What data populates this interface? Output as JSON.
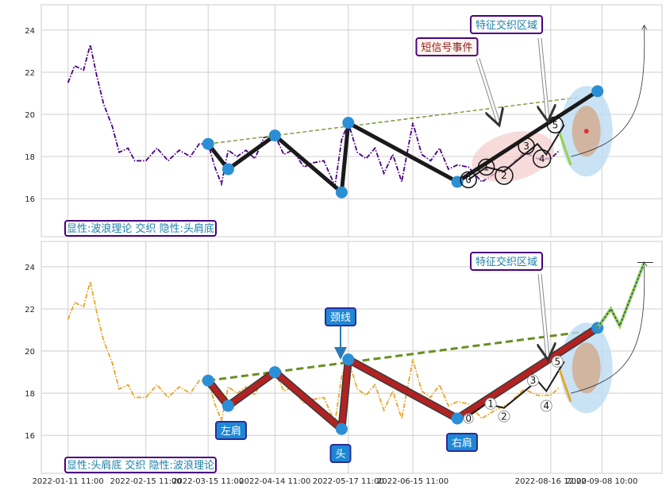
{
  "chart_data": [
    {
      "type": "line",
      "panel": "top",
      "ylim": [
        14.2,
        25.2
      ],
      "yticks": [
        16,
        18,
        20,
        22,
        24
      ],
      "grid": true,
      "series": [
        {
          "color": "#4b0082",
          "style": "dash-dot",
          "x": [
            "2022-01-11",
            "2022-01-14",
            "2022-01-18",
            "2022-01-21",
            "2022-01-24",
            "2022-01-27",
            "2022-01-31",
            "2022-02-03",
            "2022-02-07",
            "2022-02-10",
            "2022-02-15",
            "2022-02-20",
            "2022-02-25",
            "2022-03-02",
            "2022-03-07",
            "2022-03-11",
            "2022-03-15",
            "2022-03-18",
            "2022-03-21",
            "2022-03-24",
            "2022-03-28",
            "2022-04-01",
            "2022-04-05",
            "2022-04-09",
            "2022-04-14",
            "2022-04-18",
            "2022-04-22",
            "2022-04-27",
            "2022-05-01",
            "2022-05-06",
            "2022-05-11",
            "2022-05-14",
            "2022-05-17",
            "2022-05-21",
            "2022-05-25",
            "2022-05-29",
            "2022-06-02",
            "2022-06-06",
            "2022-06-10",
            "2022-06-15",
            "2022-06-19",
            "2022-06-23",
            "2022-06-27",
            "2022-07-01",
            "2022-07-05",
            "2022-07-10",
            "2022-07-16",
            "2022-07-22",
            "2022-07-28",
            "2022-08-04",
            "2022-08-10",
            "2022-08-16",
            "2022-08-20"
          ],
          "y": [
            21.5,
            22.3,
            22.1,
            23.3,
            21.8,
            20.5,
            19.4,
            18.2,
            18.4,
            17.8,
            17.8,
            18.4,
            17.8,
            18.3,
            18.0,
            18.6,
            18.6,
            17.5,
            16.7,
            18.3,
            18.0,
            18.3,
            17.9,
            18.9,
            19.0,
            18.1,
            18.3,
            17.5,
            17.7,
            17.8,
            16.6,
            18.8,
            19.6,
            18.2,
            17.9,
            18.4,
            17.2,
            18.1,
            16.8,
            19.6,
            18.1,
            17.8,
            18.4,
            17.4,
            17.6,
            17.5,
            16.8,
            17.2,
            17.5,
            18.2,
            17.9,
            17.9,
            18.3
          ]
        },
        {
          "color": "#1a1a1a",
          "name": "",
          "x": [
            "2022-03-15",
            "2022-03-24",
            "2022-04-14",
            "2022-05-14",
            "2022-05-17",
            "2022-07-05",
            "2022-09-06"
          ],
          "y": [
            18.6,
            17.4,
            19.0,
            16.3,
            19.6,
            16.8,
            21.1
          ]
        }
      ],
      "neckline": {
        "x": [
          "2022-03-15",
          "2022-08-28"
        ],
        "y": [
          18.6,
          20.8
        ],
        "color": "#6b8e23"
      },
      "wave_labels": [
        "0",
        "1",
        "2",
        "3",
        "4",
        "5"
      ],
      "annotations": [
        {
          "text": "短信号事件",
          "color": "#8b1a1a"
        },
        {
          "text": "特征交织区域",
          "color": "#1e7fa8"
        }
      ],
      "footer_label": "显性:波浪理论 交织 隐性:头肩底"
    },
    {
      "type": "line",
      "panel": "bottom",
      "ylim": [
        14.2,
        25.2
      ],
      "yticks": [
        16,
        18,
        20,
        22,
        24
      ],
      "grid": true,
      "series": [
        {
          "color": "#e8a628",
          "style": "dash-dot"
        },
        {
          "color": "#b22222",
          "name": "",
          "x": [
            "2022-03-15",
            "2022-03-24",
            "2022-04-14",
            "2022-05-14",
            "2022-05-17",
            "2022-07-05",
            "2022-09-06"
          ],
          "y": [
            18.6,
            17.4,
            19.0,
            16.3,
            19.6,
            16.8,
            21.1
          ]
        }
      ],
      "neckline": {
        "x": [
          "2022-03-15",
          "2022-09-06"
        ],
        "y": [
          18.6,
          21.0
        ],
        "color": "#6b8e23"
      },
      "wave_labels": [
        "0",
        "1",
        "2",
        "3",
        "4",
        "5"
      ],
      "annotations": [
        {
          "text": "特征交织区域",
          "color": "#1e7fa8"
        },
        {
          "text": "颈线"
        },
        {
          "text": "左肩"
        },
        {
          "text": "头"
        },
        {
          "text": "右肩"
        }
      ],
      "footer_label": "显性:头肩底 交织 隐性:波浪理论"
    }
  ],
  "xaxis": {
    "ticks": [
      "2022-01-11 11:00",
      "2022-02-15 11:00",
      "2022-03-15 11:00",
      "2022-04-14 11:00",
      "2022-05-17 11:00",
      "2022-06-15 11:00",
      "2022-08-16 12:00",
      "2022-09-08 10:00"
    ]
  }
}
